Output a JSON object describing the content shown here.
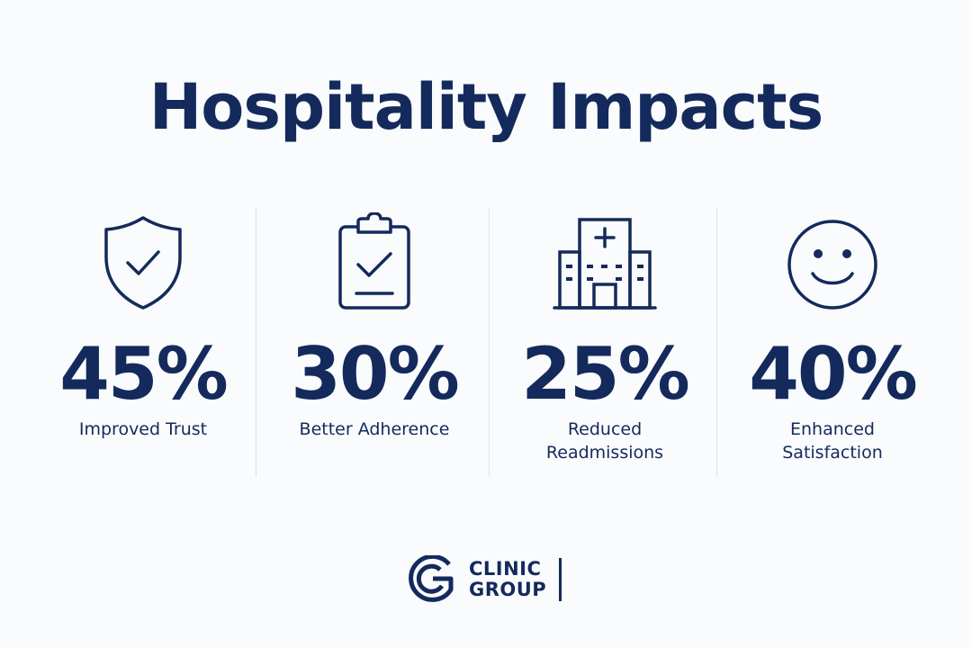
{
  "title": "Hospitality Impacts",
  "stats": [
    {
      "icon": "shield-check-icon",
      "value": "45%",
      "label": "Improved Trust"
    },
    {
      "icon": "clipboard-check-icon",
      "value": "30%",
      "label": "Better Adherence"
    },
    {
      "icon": "hospital-icon",
      "value": "25%",
      "label": "Reduced\nReadmissions"
    },
    {
      "icon": "smiley-face-icon",
      "value": "40%",
      "label": "Enhanced\nSatisfaction"
    }
  ],
  "logo": {
    "line1": "CLINIC",
    "line2": "GROUP"
  },
  "colors": {
    "primary": "#142a5c",
    "background": "#fafbfc",
    "divider": "#dde1e8"
  }
}
